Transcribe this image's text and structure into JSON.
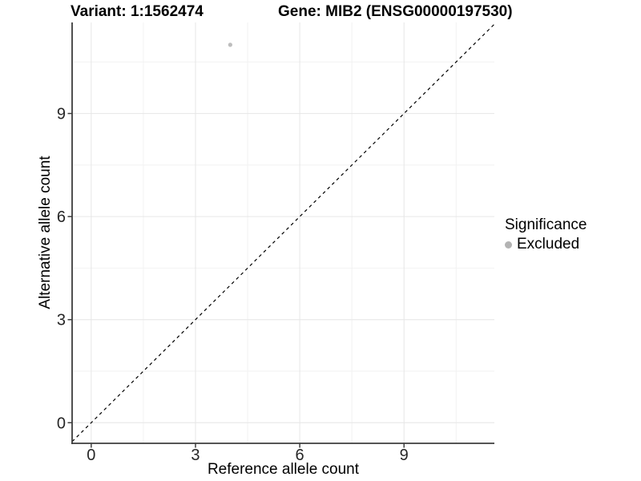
{
  "header": {
    "variant_title": "Variant: 1:1562474",
    "gene_title": "Gene: MIB2 (ENSG00000197530)"
  },
  "chart_data": {
    "type": "scatter",
    "xlabel": "Reference allele count",
    "ylabel": "Alternative allele count",
    "x_ticks": [
      0,
      3,
      6,
      9
    ],
    "y_ticks": [
      0,
      3,
      6,
      9
    ],
    "xlim": [
      -0.55,
      11.6
    ],
    "ylim": [
      -0.6,
      11.65
    ],
    "grid": {
      "major": true,
      "minor": true
    },
    "reference_line": {
      "slope": 1,
      "intercept": 0,
      "style": "dashed",
      "color": "#000000"
    },
    "points": [
      {
        "x": 4,
        "y": 11,
        "significance": "Excluded",
        "color": "#bdbdbd"
      }
    ],
    "legend": {
      "title": "Significance",
      "position": "right",
      "entries": [
        {
          "label": "Excluded",
          "color": "#b3b3b3"
        }
      ]
    },
    "colors": {
      "grid_major": "#e6e6e6",
      "grid_minor": "#f2f2f2",
      "axis_line": "#3d3d3d",
      "tick_label": "#262626"
    }
  }
}
